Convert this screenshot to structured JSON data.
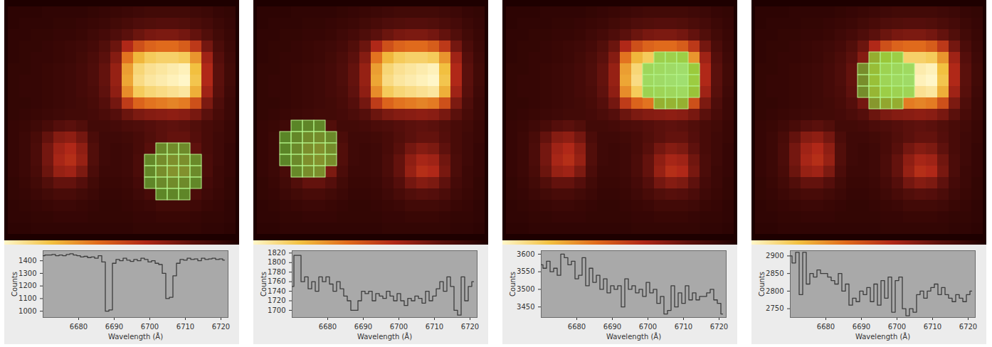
{
  "image": {
    "cells": [
      [
        5,
        5,
        5,
        6,
        6,
        6,
        6,
        7,
        8,
        9,
        10,
        11,
        12,
        12,
        12,
        12,
        11,
        10,
        8,
        7
      ],
      [
        5,
        6,
        6,
        6,
        7,
        7,
        8,
        9,
        10,
        12,
        14,
        16,
        17,
        18,
        18,
        17,
        15,
        13,
        10,
        8
      ],
      [
        6,
        6,
        7,
        7,
        8,
        8,
        9,
        11,
        13,
        16,
        20,
        24,
        27,
        28,
        28,
        26,
        22,
        17,
        12,
        9
      ],
      [
        6,
        7,
        7,
        8,
        9,
        10,
        11,
        13,
        17,
        24,
        40,
        52,
        58,
        60,
        60,
        56,
        45,
        26,
        15,
        10
      ],
      [
        6,
        7,
        8,
        8,
        9,
        10,
        12,
        15,
        20,
        30,
        62,
        78,
        84,
        86,
        86,
        84,
        70,
        36,
        18,
        11
      ],
      [
        7,
        7,
        8,
        9,
        10,
        11,
        13,
        16,
        22,
        34,
        72,
        88,
        92,
        94,
        96,
        98,
        80,
        40,
        20,
        12
      ],
      [
        7,
        8,
        8,
        9,
        10,
        11,
        13,
        16,
        22,
        34,
        74,
        90,
        94,
        96,
        98,
        100,
        82,
        40,
        20,
        12
      ],
      [
        7,
        8,
        8,
        9,
        10,
        11,
        13,
        15,
        21,
        32,
        68,
        84,
        88,
        90,
        92,
        94,
        76,
        36,
        19,
        11
      ],
      [
        7,
        7,
        8,
        9,
        10,
        11,
        12,
        14,
        18,
        26,
        46,
        58,
        62,
        64,
        66,
        64,
        52,
        28,
        16,
        10
      ],
      [
        7,
        8,
        9,
        10,
        11,
        12,
        12,
        13,
        15,
        18,
        24,
        28,
        30,
        31,
        32,
        31,
        27,
        20,
        14,
        10
      ],
      [
        8,
        9,
        11,
        14,
        18,
        20,
        17,
        12,
        12,
        13,
        15,
        16,
        18,
        20,
        21,
        20,
        17,
        14,
        12,
        9
      ],
      [
        8,
        10,
        14,
        22,
        30,
        32,
        26,
        15,
        11,
        11,
        12,
        14,
        17,
        20,
        22,
        22,
        18,
        14,
        11,
        9
      ],
      [
        8,
        10,
        15,
        26,
        36,
        40,
        32,
        17,
        11,
        10,
        11,
        14,
        19,
        26,
        30,
        28,
        21,
        14,
        11,
        8
      ],
      [
        8,
        10,
        15,
        26,
        38,
        42,
        34,
        17,
        11,
        10,
        11,
        15,
        22,
        32,
        38,
        36,
        25,
        15,
        11,
        8
      ],
      [
        8,
        10,
        14,
        24,
        34,
        36,
        28,
        15,
        10,
        10,
        11,
        15,
        22,
        34,
        42,
        40,
        27,
        15,
        10,
        8
      ],
      [
        7,
        9,
        12,
        17,
        22,
        22,
        18,
        12,
        9,
        9,
        10,
        13,
        18,
        26,
        30,
        28,
        21,
        13,
        10,
        7
      ],
      [
        7,
        8,
        10,
        12,
        14,
        14,
        12,
        10,
        8,
        8,
        9,
        11,
        14,
        17,
        19,
        18,
        15,
        11,
        9,
        7
      ],
      [
        6,
        7,
        8,
        9,
        10,
        10,
        9,
        8,
        7,
        7,
        8,
        9,
        10,
        12,
        12,
        12,
        11,
        9,
        8,
        6
      ],
      [
        6,
        6,
        7,
        7,
        8,
        8,
        8,
        7,
        7,
        7,
        7,
        8,
        8,
        9,
        9,
        9,
        8,
        7,
        7,
        6
      ],
      [
        5,
        5,
        6,
        6,
        6,
        6,
        6,
        6,
        6,
        6,
        6,
        7,
        7,
        7,
        7,
        7,
        7,
        6,
        6,
        5
      ]
    ],
    "colorbar": {
      "range": [
        0,
        100
      ],
      "colors": [
        "#1e0000",
        "#5a100c",
        "#b02818",
        "#e06a1c",
        "#f2c040",
        "#fff6c8"
      ]
    }
  },
  "chart_data": [
    {
      "type": "line",
      "line_style": "step",
      "color": "#3c3c3c",
      "xlabel": "Wavelength (Å)",
      "ylabel": "Counts",
      "selection": [
        [
          13,
          12
        ],
        [
          14,
          12
        ],
        [
          15,
          12
        ],
        [
          12,
          13
        ],
        [
          13,
          13
        ],
        [
          14,
          13
        ],
        [
          15,
          13
        ],
        [
          16,
          13
        ],
        [
          12,
          14
        ],
        [
          13,
          14
        ],
        [
          14,
          14
        ],
        [
          15,
          14
        ],
        [
          16,
          14
        ],
        [
          12,
          15
        ],
        [
          13,
          15
        ],
        [
          14,
          15
        ],
        [
          15,
          15
        ],
        [
          16,
          15
        ],
        [
          13,
          16
        ],
        [
          14,
          16
        ],
        [
          15,
          16
        ]
      ],
      "x": [
        6670,
        6671,
        6672,
        6673,
        6674,
        6675,
        6676,
        6677,
        6678,
        6679,
        6680,
        6681,
        6682,
        6683,
        6684,
        6685,
        6686,
        6687,
        6688,
        6689,
        6690,
        6691,
        6692,
        6693,
        6694,
        6695,
        6696,
        6697,
        6698,
        6699,
        6700,
        6701,
        6702,
        6703,
        6704,
        6705,
        6706,
        6707,
        6708,
        6709,
        6710,
        6711,
        6712,
        6713,
        6714,
        6715,
        6716,
        6717,
        6718,
        6719,
        6720,
        6721
      ],
      "values": [
        1440,
        1445,
        1445,
        1450,
        1440,
        1445,
        1440,
        1450,
        1455,
        1445,
        1440,
        1430,
        1435,
        1425,
        1430,
        1420,
        1440,
        1390,
        1000,
        1010,
        1380,
        1410,
        1400,
        1420,
        1405,
        1395,
        1410,
        1400,
        1420,
        1410,
        1390,
        1400,
        1380,
        1370,
        1300,
        1100,
        1110,
        1280,
        1380,
        1410,
        1405,
        1420,
        1410,
        1415,
        1400,
        1420,
        1410,
        1415,
        1420,
        1410,
        1415,
        1405
      ],
      "xlim": [
        6670,
        6722
      ],
      "xticks": [
        6680,
        6690,
        6700,
        6710,
        6720
      ],
      "ylim": [
        950,
        1480
      ],
      "yticks": [
        1000,
        1100,
        1200,
        1300,
        1400
      ]
    },
    {
      "type": "line",
      "line_style": "step",
      "color": "#3c3c3c",
      "xlabel": "Wavelength (Å)",
      "ylabel": "Counts",
      "selection": [
        [
          3,
          10
        ],
        [
          4,
          10
        ],
        [
          5,
          10
        ],
        [
          2,
          11
        ],
        [
          3,
          11
        ],
        [
          4,
          11
        ],
        [
          5,
          11
        ],
        [
          6,
          11
        ],
        [
          2,
          12
        ],
        [
          3,
          12
        ],
        [
          4,
          12
        ],
        [
          5,
          12
        ],
        [
          6,
          12
        ],
        [
          2,
          13
        ],
        [
          3,
          13
        ],
        [
          4,
          13
        ],
        [
          5,
          13
        ],
        [
          6,
          13
        ],
        [
          3,
          14
        ],
        [
          4,
          14
        ],
        [
          5,
          14
        ]
      ],
      "x": [
        6670,
        6671,
        6672,
        6673,
        6674,
        6675,
        6676,
        6677,
        6678,
        6679,
        6680,
        6681,
        6682,
        6683,
        6684,
        6685,
        6686,
        6687,
        6688,
        6689,
        6690,
        6691,
        6692,
        6693,
        6694,
        6695,
        6696,
        6697,
        6698,
        6699,
        6700,
        6701,
        6702,
        6703,
        6704,
        6705,
        6706,
        6707,
        6708,
        6709,
        6710,
        6711,
        6712,
        6713,
        6714,
        6715,
        6716,
        6717,
        6718,
        6719,
        6720,
        6721
      ],
      "values": [
        1750,
        1815,
        1815,
        1760,
        1770,
        1745,
        1760,
        1740,
        1770,
        1760,
        1770,
        1755,
        1740,
        1760,
        1745,
        1730,
        1720,
        1700,
        1700,
        1720,
        1740,
        1735,
        1740,
        1720,
        1735,
        1730,
        1725,
        1740,
        1730,
        1720,
        1735,
        1720,
        1710,
        1725,
        1720,
        1730,
        1725,
        1715,
        1740,
        1720,
        1730,
        1745,
        1760,
        1740,
        1770,
        1750,
        1700,
        1690,
        1770,
        1720,
        1750,
        1760
      ],
      "xlim": [
        6670,
        6722
      ],
      "xticks": [
        6680,
        6690,
        6700,
        6710,
        6720
      ],
      "ylim": [
        1685,
        1825
      ],
      "yticks": [
        1700,
        1720,
        1740,
        1760,
        1780,
        1800,
        1820
      ]
    },
    {
      "type": "line",
      "line_style": "step",
      "color": "#3c3c3c",
      "xlabel": "Wavelength (Å)",
      "ylabel": "Counts",
      "selection": [
        [
          13,
          4
        ],
        [
          14,
          4
        ],
        [
          15,
          4
        ],
        [
          12,
          5
        ],
        [
          13,
          5
        ],
        [
          14,
          5
        ],
        [
          15,
          5
        ],
        [
          16,
          5
        ],
        [
          12,
          6
        ],
        [
          13,
          6
        ],
        [
          14,
          6
        ],
        [
          15,
          6
        ],
        [
          16,
          6
        ],
        [
          12,
          7
        ],
        [
          13,
          7
        ],
        [
          14,
          7
        ],
        [
          15,
          7
        ],
        [
          16,
          7
        ],
        [
          13,
          8
        ],
        [
          14,
          8
        ],
        [
          15,
          8
        ]
      ],
      "x": [
        6670,
        6671,
        6672,
        6673,
        6674,
        6675,
        6676,
        6677,
        6678,
        6679,
        6680,
        6681,
        6682,
        6683,
        6684,
        6685,
        6686,
        6687,
        6688,
        6689,
        6690,
        6691,
        6692,
        6693,
        6694,
        6695,
        6696,
        6697,
        6698,
        6699,
        6700,
        6701,
        6702,
        6703,
        6704,
        6705,
        6706,
        6707,
        6708,
        6709,
        6710,
        6711,
        6712,
        6713,
        6714,
        6715,
        6716,
        6717,
        6718,
        6719,
        6720,
        6721
      ],
      "values": [
        3570,
        3560,
        3580,
        3550,
        3560,
        3540,
        3600,
        3590,
        3570,
        3580,
        3530,
        3540,
        3590,
        3510,
        3560,
        3520,
        3540,
        3500,
        3530,
        3490,
        3510,
        3500,
        3510,
        3450,
        3530,
        3500,
        3510,
        3490,
        3500,
        3480,
        3520,
        3490,
        3500,
        3460,
        3480,
        3430,
        3440,
        3510,
        3450,
        3490,
        3460,
        3510,
        3470,
        3490,
        3470,
        3480,
        3480,
        3490,
        3500,
        3470,
        3460,
        3430
      ],
      "xlim": [
        6670,
        6722
      ],
      "xticks": [
        6680,
        6690,
        6700,
        6710,
        6720
      ],
      "ylim": [
        3420,
        3610
      ],
      "yticks": [
        3450,
        3500,
        3550,
        3600
      ]
    },
    {
      "type": "line",
      "line_style": "step",
      "color": "#3c3c3c",
      "xlabel": "Wavelength (Å)",
      "ylabel": "Counts",
      "selection": [
        [
          10,
          4
        ],
        [
          11,
          4
        ],
        [
          12,
          4
        ],
        [
          9,
          5
        ],
        [
          10,
          5
        ],
        [
          11,
          5
        ],
        [
          12,
          5
        ],
        [
          13,
          5
        ],
        [
          9,
          6
        ],
        [
          10,
          6
        ],
        [
          11,
          6
        ],
        [
          12,
          6
        ],
        [
          13,
          6
        ],
        [
          9,
          7
        ],
        [
          10,
          7
        ],
        [
          11,
          7
        ],
        [
          12,
          7
        ],
        [
          13,
          7
        ],
        [
          10,
          8
        ],
        [
          11,
          8
        ],
        [
          12,
          8
        ]
      ],
      "x": [
        6670,
        6671,
        6672,
        6673,
        6674,
        6675,
        6676,
        6677,
        6678,
        6679,
        6680,
        6681,
        6682,
        6683,
        6684,
        6685,
        6686,
        6687,
        6688,
        6689,
        6690,
        6691,
        6692,
        6693,
        6694,
        6695,
        6696,
        6697,
        6698,
        6699,
        6700,
        6701,
        6702,
        6703,
        6704,
        6705,
        6706,
        6707,
        6708,
        6709,
        6710,
        6711,
        6712,
        6713,
        6714,
        6715,
        6716,
        6717,
        6718,
        6719,
        6720,
        6721
      ],
      "values": [
        2900,
        2880,
        2910,
        2790,
        2910,
        2820,
        2850,
        2840,
        2860,
        2850,
        2850,
        2840,
        2830,
        2820,
        2850,
        2800,
        2820,
        2760,
        2780,
        2770,
        2800,
        2790,
        2810,
        2770,
        2820,
        2760,
        2830,
        2780,
        2840,
        2740,
        2830,
        2840,
        2750,
        2730,
        2750,
        2740,
        2790,
        2800,
        2780,
        2800,
        2810,
        2820,
        2790,
        2810,
        2790,
        2780,
        2770,
        2790,
        2780,
        2770,
        2790,
        2800
      ],
      "xlim": [
        6670,
        6722
      ],
      "xticks": [
        6680,
        6690,
        6700,
        6710,
        6720
      ],
      "ylim": [
        2725,
        2915
      ],
      "yticks": [
        2750,
        2800,
        2850,
        2900
      ]
    }
  ]
}
